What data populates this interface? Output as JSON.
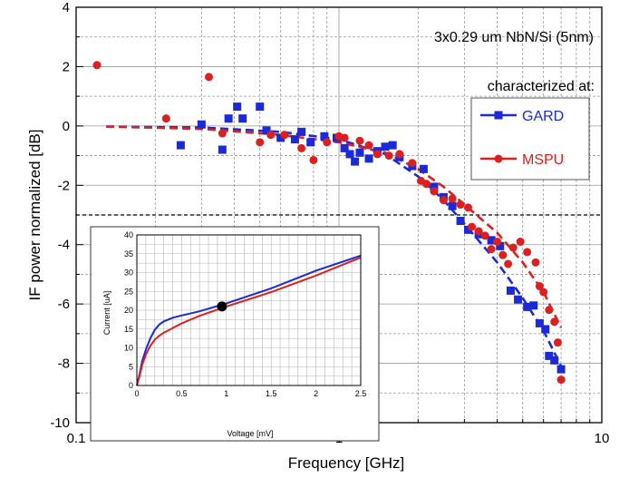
{
  "chart_data": [
    {
      "type": "scatter",
      "title": "3x0.29 um NbN/Si (5nm)",
      "xlabel": "Frequency [GHz]",
      "ylabel": "IF power normalized [dB]",
      "xscale": "log",
      "xlim": [
        0.1,
        10
      ],
      "ylim": [
        -10,
        4
      ],
      "x_ticks": [
        {
          "v": 0.1,
          "label": "0.1"
        },
        {
          "v": 1,
          "label": "1"
        },
        {
          "v": 10,
          "label": "10"
        }
      ],
      "y_ticks": [
        {
          "v": 4,
          "label": "4"
        },
        {
          "v": 2,
          "label": "2"
        },
        {
          "v": 0,
          "label": "0"
        },
        {
          "v": -2,
          "label": "-2"
        },
        {
          "v": -4,
          "label": "-4"
        },
        {
          "v": -6,
          "label": "-6"
        },
        {
          "v": -8,
          "label": "-8"
        },
        {
          "v": -10,
          "label": "-10"
        }
      ],
      "grid": true,
      "legend_title": "characterized at:",
      "legend_position": "right",
      "reference_line": {
        "y": -3,
        "style": "dashed",
        "color": "#000000"
      },
      "series": [
        {
          "name": "GARD",
          "color": "#1a2ad8",
          "marker": "square",
          "points": [
            [
              0.25,
              -0.65
            ],
            [
              0.3,
              0.05
            ],
            [
              0.36,
              -0.8
            ],
            [
              0.38,
              0.25
            ],
            [
              0.41,
              0.65
            ],
            [
              0.43,
              0.25
            ],
            [
              0.5,
              0.65
            ],
            [
              0.53,
              -0.15
            ],
            [
              0.6,
              -0.4
            ],
            [
              0.68,
              -0.45
            ],
            [
              0.72,
              -0.2
            ],
            [
              0.78,
              -0.55
            ],
            [
              0.88,
              -0.35
            ],
            [
              0.98,
              -0.4
            ],
            [
              1.05,
              -0.75
            ],
            [
              1.1,
              -0.95
            ],
            [
              1.15,
              -1.2
            ],
            [
              1.2,
              -0.9
            ],
            [
              1.3,
              -1.1
            ],
            [
              1.4,
              -0.85
            ],
            [
              1.5,
              -0.7
            ],
            [
              1.6,
              -0.65
            ],
            [
              1.7,
              -1.05
            ],
            [
              1.9,
              -1.35
            ],
            [
              2.1,
              -1.45
            ],
            [
              2.3,
              -2.05
            ],
            [
              2.5,
              -2.4
            ],
            [
              2.7,
              -2.7
            ],
            [
              2.9,
              -3.2
            ],
            [
              3.1,
              -3.5
            ],
            [
              3.4,
              -3.65
            ],
            [
              3.8,
              -3.85
            ],
            [
              4.1,
              -4.05
            ],
            [
              4.5,
              -5.55
            ],
            [
              4.8,
              -5.85
            ],
            [
              5.2,
              -6.1
            ],
            [
              5.5,
              -6.05
            ],
            [
              5.8,
              -6.65
            ],
            [
              6.1,
              -6.85
            ],
            [
              6.3,
              -7.75
            ],
            [
              6.6,
              -7.9
            ],
            [
              7.0,
              -8.2
            ]
          ],
          "fit_line": [
            [
              0.13,
              -0.02
            ],
            [
              0.3,
              -0.05
            ],
            [
              0.6,
              -0.2
            ],
            [
              1.0,
              -0.45
            ],
            [
              1.5,
              -0.95
            ],
            [
              2.0,
              -1.7
            ],
            [
              2.5,
              -2.5
            ],
            [
              3.0,
              -3.3
            ],
            [
              4.0,
              -4.6
            ],
            [
              5.0,
              -5.8
            ],
            [
              6.0,
              -6.9
            ],
            [
              7.0,
              -8.1
            ]
          ]
        },
        {
          "name": "MSPU",
          "color": "#dc2020",
          "marker": "circle",
          "points": [
            [
              0.12,
              2.05
            ],
            [
              0.22,
              0.25
            ],
            [
              0.32,
              1.65
            ],
            [
              0.36,
              -0.25
            ],
            [
              0.5,
              -0.55
            ],
            [
              0.55,
              -0.3
            ],
            [
              0.62,
              -0.3
            ],
            [
              0.72,
              -0.75
            ],
            [
              0.8,
              -1.15
            ],
            [
              0.9,
              -0.55
            ],
            [
              1.0,
              -0.35
            ],
            [
              1.05,
              -0.4
            ],
            [
              1.2,
              -0.5
            ],
            [
              1.3,
              -0.65
            ],
            [
              1.4,
              -0.95
            ],
            [
              1.55,
              -1.0
            ],
            [
              1.7,
              -0.95
            ],
            [
              1.9,
              -1.25
            ],
            [
              2.05,
              -1.85
            ],
            [
              2.15,
              -1.95
            ],
            [
              2.3,
              -2.2
            ],
            [
              2.5,
              -2.5
            ],
            [
              2.7,
              -2.45
            ],
            [
              2.9,
              -2.65
            ],
            [
              3.1,
              -2.75
            ],
            [
              3.2,
              -3.4
            ],
            [
              3.4,
              -3.55
            ],
            [
              3.6,
              -3.7
            ],
            [
              3.8,
              -4.15
            ],
            [
              4.0,
              -3.9
            ],
            [
              4.2,
              -4.35
            ],
            [
              4.4,
              -4.65
            ],
            [
              4.6,
              -4.1
            ],
            [
              4.9,
              -3.9
            ],
            [
              5.2,
              -4.25
            ],
            [
              5.6,
              -4.6
            ],
            [
              5.8,
              -5.4
            ],
            [
              6.0,
              -5.6
            ],
            [
              6.3,
              -6.2
            ],
            [
              6.6,
              -6.6
            ],
            [
              6.8,
              -7.3
            ],
            [
              7.0,
              -8.55
            ]
          ],
          "fit_line": [
            [
              0.13,
              -0.02
            ],
            [
              0.3,
              -0.1
            ],
            [
              0.6,
              -0.3
            ],
            [
              1.0,
              -0.55
            ],
            [
              1.5,
              -0.9
            ],
            [
              2.0,
              -1.45
            ],
            [
              2.5,
              -2.05
            ],
            [
              3.0,
              -2.65
            ],
            [
              4.0,
              -3.6
            ],
            [
              5.0,
              -4.6
            ],
            [
              6.0,
              -5.6
            ],
            [
              7.0,
              -6.8
            ]
          ]
        }
      ]
    },
    {
      "type": "line",
      "title": "",
      "xlabel": "Voltage [mV]",
      "ylabel": "Current [uA]",
      "xlim": [
        0,
        2.5
      ],
      "ylim": [
        0,
        40
      ],
      "x_ticks": [
        {
          "v": 0,
          "label": "0"
        },
        {
          "v": 0.5,
          "label": "0.5"
        },
        {
          "v": 1,
          "label": "1"
        },
        {
          "v": 1.5,
          "label": "1.5"
        },
        {
          "v": 2,
          "label": "2"
        },
        {
          "v": 2.5,
          "label": "2.5"
        }
      ],
      "y_ticks": [
        {
          "v": 0,
          "label": "0"
        },
        {
          "v": 5,
          "label": "5"
        },
        {
          "v": 10,
          "label": "10"
        },
        {
          "v": 15,
          "label": "15"
        },
        {
          "v": 20,
          "label": "20"
        },
        {
          "v": 25,
          "label": "25"
        },
        {
          "v": 30,
          "label": "30"
        },
        {
          "v": 35,
          "label": "35"
        },
        {
          "v": 40,
          "label": "40"
        }
      ],
      "grid": true,
      "operating_point": {
        "x": 0.95,
        "y": 21
      },
      "series": [
        {
          "color": "#1a2ad8",
          "points": [
            [
              0,
              0
            ],
            [
              0.03,
              3
            ],
            [
              0.06,
              6.5
            ],
            [
              0.1,
              9.5
            ],
            [
              0.15,
              12.5
            ],
            [
              0.2,
              14.8
            ],
            [
              0.25,
              16.2
            ],
            [
              0.3,
              17.0
            ],
            [
              0.4,
              18.0
            ],
            [
              0.5,
              18.6
            ],
            [
              0.7,
              19.7
            ],
            [
              1.0,
              21.8
            ],
            [
              1.5,
              25.8
            ],
            [
              2.0,
              30.5
            ],
            [
              2.5,
              34.5
            ]
          ]
        },
        {
          "color": "#dc2020",
          "points": [
            [
              0,
              0
            ],
            [
              0.03,
              2.5
            ],
            [
              0.06,
              5.5
            ],
            [
              0.1,
              8.2
            ],
            [
              0.15,
              10.5
            ],
            [
              0.2,
              12.2
            ],
            [
              0.25,
              13.2
            ],
            [
              0.3,
              14.0
            ],
            [
              0.5,
              16.5
            ],
            [
              0.7,
              18.5
            ],
            [
              1.0,
              21.0
            ],
            [
              1.5,
              24.8
            ],
            [
              2.0,
              29.2
            ],
            [
              2.5,
              34.0
            ]
          ]
        }
      ]
    }
  ]
}
